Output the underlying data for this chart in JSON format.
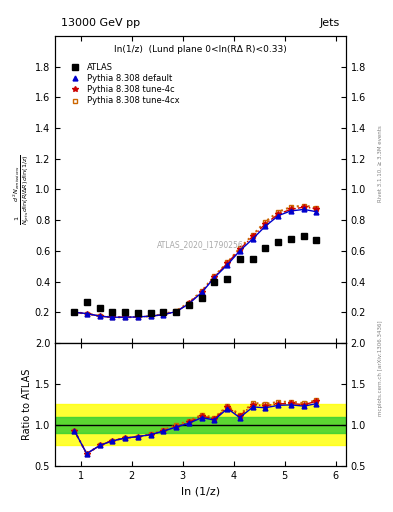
{
  "title_left": "13000 GeV pp",
  "title_right": "Jets",
  "panel_title": "ln(1/z)  (Lund plane 0<ln(RΔ R)<0.33)",
  "ylabel_main_line1": "d² Nₙₑₘᵢˢˢᵢᵒⁿˢ",
  "ylabel_main_line2": "        1",
  "ylabel_main": "d² N_emissions",
  "ylabel_ratio": "Ratio to ATLAS",
  "xlabel": "ln (1/z)",
  "right_label_main": "Rivet 3.1.10, ≥ 3.3M events",
  "right_label_sub": "mcplots.cern.ch [arXiv:1306.3436]",
  "watermark": "ATLAS_2020_I1790256",
  "atlas_x": [
    0.88,
    1.12,
    1.38,
    1.62,
    1.88,
    2.12,
    2.38,
    2.62,
    2.88,
    3.12,
    3.38,
    3.62,
    3.88,
    4.12,
    4.38,
    4.62,
    4.88,
    5.12,
    5.38,
    5.62
  ],
  "atlas_y": [
    0.2,
    0.27,
    0.225,
    0.205,
    0.2,
    0.198,
    0.198,
    0.2,
    0.205,
    0.245,
    0.295,
    0.395,
    0.415,
    0.545,
    0.545,
    0.62,
    0.66,
    0.68,
    0.7,
    0.67
  ],
  "pythia_default_x": [
    0.88,
    1.12,
    1.38,
    1.62,
    1.88,
    2.12,
    2.38,
    2.62,
    2.88,
    3.12,
    3.38,
    3.62,
    3.88,
    4.12,
    4.38,
    4.62,
    4.88,
    5.12,
    5.38,
    5.62
  ],
  "pythia_default_y": [
    0.2,
    0.192,
    0.175,
    0.168,
    0.168,
    0.17,
    0.175,
    0.185,
    0.205,
    0.255,
    0.33,
    0.425,
    0.51,
    0.6,
    0.68,
    0.76,
    0.83,
    0.86,
    0.87,
    0.855
  ],
  "pythia_4c_x": [
    0.88,
    1.12,
    1.38,
    1.62,
    1.88,
    2.12,
    2.38,
    2.62,
    2.88,
    3.12,
    3.38,
    3.62,
    3.88,
    4.12,
    4.38,
    4.62,
    4.88,
    5.12,
    5.38,
    5.62
  ],
  "pythia_4c_y": [
    0.2,
    0.192,
    0.175,
    0.168,
    0.168,
    0.17,
    0.175,
    0.185,
    0.205,
    0.258,
    0.335,
    0.43,
    0.52,
    0.61,
    0.695,
    0.775,
    0.84,
    0.87,
    0.885,
    0.875
  ],
  "pythia_4cx_x": [
    0.88,
    1.12,
    1.38,
    1.62,
    1.88,
    2.12,
    2.38,
    2.62,
    2.88,
    3.12,
    3.38,
    3.62,
    3.88,
    4.12,
    4.38,
    4.62,
    4.88,
    5.12,
    5.38,
    5.62
  ],
  "pythia_4cx_y": [
    0.2,
    0.192,
    0.175,
    0.168,
    0.168,
    0.17,
    0.175,
    0.188,
    0.21,
    0.262,
    0.34,
    0.435,
    0.525,
    0.618,
    0.705,
    0.79,
    0.855,
    0.885,
    0.895,
    0.882
  ],
  "ratio_default_y": [
    0.93,
    0.65,
    0.75,
    0.805,
    0.84,
    0.858,
    0.882,
    0.925,
    0.975,
    1.02,
    1.09,
    1.06,
    1.2,
    1.09,
    1.22,
    1.21,
    1.24,
    1.245,
    1.23,
    1.26
  ],
  "ratio_4c_y": [
    0.93,
    0.65,
    0.75,
    0.81,
    0.84,
    0.858,
    0.882,
    0.925,
    0.978,
    1.032,
    1.108,
    1.074,
    1.218,
    1.11,
    1.248,
    1.235,
    1.258,
    1.262,
    1.248,
    1.288
  ],
  "ratio_4cx_y": [
    0.93,
    0.65,
    0.75,
    0.81,
    0.84,
    0.858,
    0.885,
    0.938,
    0.998,
    1.05,
    1.125,
    1.088,
    1.232,
    1.125,
    1.268,
    1.258,
    1.28,
    1.285,
    1.265,
    1.3
  ],
  "band_green_lo": 0.9,
  "band_green_hi": 1.1,
  "band_yellow_lo": 0.75,
  "band_yellow_hi": 1.25,
  "color_default": "#0000cc",
  "color_4c": "#cc0000",
  "color_4cx": "#cc6600",
  "color_atlas": "#000000",
  "ylim_main": [
    0.0,
    2.0
  ],
  "ylim_ratio": [
    0.5,
    2.0
  ],
  "xlim": [
    0.5,
    6.2
  ],
  "yticks_main": [
    0.2,
    0.4,
    0.6,
    0.8,
    1.0,
    1.2,
    1.4,
    1.6,
    1.8
  ],
  "yticks_ratio": [
    0.5,
    1.0,
    1.5,
    2.0
  ],
  "xticks": [
    1,
    2,
    3,
    4,
    5,
    6
  ]
}
